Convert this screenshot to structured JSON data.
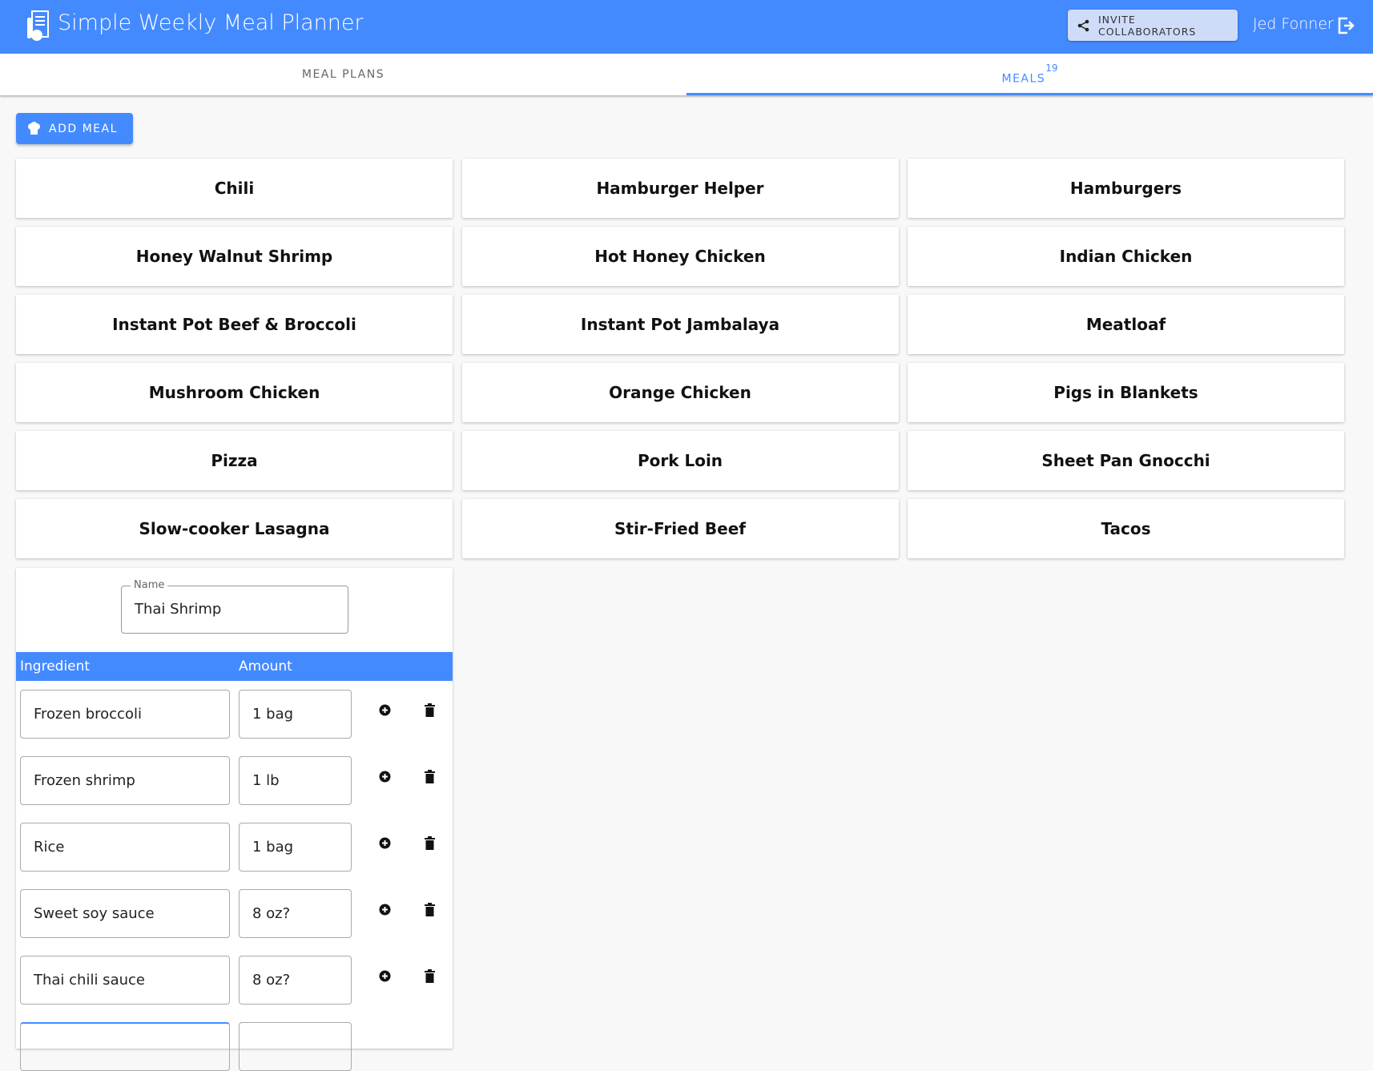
{
  "header": {
    "title": "Simple Weekly Meal Planner",
    "invite_label": "INVITE COLLABORATORS",
    "user_name": "Jed Fonner",
    "colors": {
      "primary": "#448aff"
    }
  },
  "tabs": [
    {
      "label": "MEAL PLANS",
      "active": false
    },
    {
      "label": "MEALS",
      "badge": "19",
      "active": true
    }
  ],
  "add_meal_label": "ADD MEAL",
  "meals": [
    "Chili",
    "Hamburger Helper",
    "Hamburgers",
    "Honey Walnut Shrimp",
    "Hot Honey Chicken",
    "Indian Chicken",
    "Instant Pot Beef & Broccoli",
    "Instant Pot Jambalaya",
    "Meatloaf",
    "Mushroom Chicken",
    "Orange Chicken",
    "Pigs in Blankets",
    "Pizza",
    "Pork Loin",
    "Sheet Pan Gnocchi",
    "Slow-cooker Lasagna",
    "Stir-Fried Beef",
    "Tacos"
  ],
  "editor": {
    "name_label": "Name",
    "name_value": "Thai Shrimp",
    "columns": [
      "Ingredient",
      "Amount"
    ],
    "ingredients": [
      {
        "ingredient": "Frozen broccoli",
        "amount": "1 bag"
      },
      {
        "ingredient": "Frozen shrimp",
        "amount": "1 lb"
      },
      {
        "ingredient": "Rice",
        "amount": "1 bag"
      },
      {
        "ingredient": "Sweet soy sauce",
        "amount": "8 oz?"
      },
      {
        "ingredient": "Thai chili sauce",
        "amount": "8 oz?"
      }
    ]
  }
}
